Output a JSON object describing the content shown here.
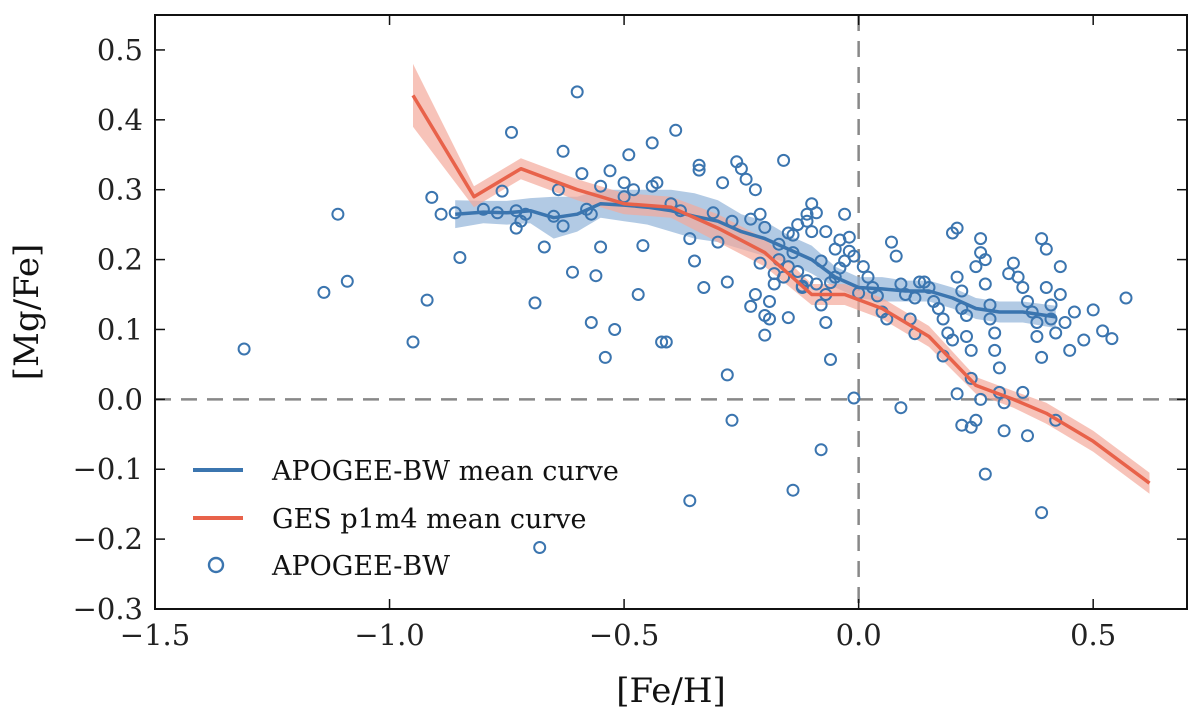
{
  "chart_data": {
    "type": "scatter",
    "title": "",
    "xlabel": "[Fe/H]",
    "ylabel": "[Mg/Fe]",
    "xlim": [
      -1.5,
      0.7
    ],
    "ylim": [
      -0.3,
      0.55
    ],
    "xticks": [
      -1.5,
      -1.0,
      -0.5,
      0.0,
      0.5
    ],
    "xtick_labels": [
      "−1.5",
      "−1.0",
      "−0.5",
      "0.0",
      "0.5"
    ],
    "yticks": [
      -0.3,
      -0.2,
      -0.1,
      0.0,
      0.1,
      0.2,
      0.3,
      0.4,
      0.5
    ],
    "ytick_labels": [
      "−0.3",
      "−0.2",
      "−0.1",
      "0.0",
      "0.1",
      "0.2",
      "0.3",
      "0.4",
      "0.5"
    ],
    "reference_lines": [
      {
        "orientation": "vertical",
        "value": 0.0,
        "style": "dashed",
        "color": "#888888"
      },
      {
        "orientation": "horizontal",
        "value": 0.0,
        "style": "dashed",
        "color": "#888888"
      }
    ],
    "legend": {
      "placement": "lower-left",
      "entries": [
        {
          "label": "APOGEE-BW mean curve",
          "kind": "line",
          "color": "#3b75af"
        },
        {
          "label": "GES p1m4 mean curve",
          "kind": "line",
          "color": "#e8624a"
        },
        {
          "label": "APOGEE-BW",
          "kind": "marker",
          "color": "#3b75af"
        }
      ]
    },
    "series": [
      {
        "name": "APOGEE-BW mean curve",
        "type": "line",
        "color": "#3b75af",
        "band_color": "#92b4d8",
        "x": [
          -0.86,
          -0.8,
          -0.75,
          -0.7,
          -0.65,
          -0.6,
          -0.55,
          -0.5,
          -0.45,
          -0.4,
          -0.35,
          -0.3,
          -0.25,
          -0.2,
          -0.15,
          -0.1,
          -0.05,
          0.0,
          0.05,
          0.1,
          0.15,
          0.2,
          0.25,
          0.3,
          0.35,
          0.42
        ],
        "y": [
          0.265,
          0.268,
          0.267,
          0.27,
          0.26,
          0.265,
          0.28,
          0.278,
          0.275,
          0.27,
          0.262,
          0.255,
          0.24,
          0.23,
          0.215,
          0.2,
          0.175,
          0.16,
          0.158,
          0.155,
          0.155,
          0.145,
          0.13,
          0.125,
          0.125,
          0.118
        ],
        "lower": [
          0.245,
          0.252,
          0.25,
          0.252,
          0.23,
          0.24,
          0.26,
          0.255,
          0.25,
          0.24,
          0.23,
          0.225,
          0.215,
          0.205,
          0.195,
          0.18,
          0.16,
          0.145,
          0.14,
          0.14,
          0.14,
          0.13,
          0.115,
          0.11,
          0.11,
          0.102
        ],
        "upper": [
          0.285,
          0.284,
          0.284,
          0.288,
          0.29,
          0.29,
          0.3,
          0.3,
          0.3,
          0.3,
          0.295,
          0.285,
          0.265,
          0.255,
          0.235,
          0.22,
          0.19,
          0.175,
          0.175,
          0.17,
          0.17,
          0.16,
          0.145,
          0.14,
          0.14,
          0.134
        ]
      },
      {
        "name": "GES p1m4 mean curve",
        "type": "line",
        "color": "#e8624a",
        "band_color": "#f4a99b",
        "x": [
          -0.95,
          -0.82,
          -0.72,
          -0.6,
          -0.5,
          -0.4,
          -0.3,
          -0.2,
          -0.1,
          -0.03,
          0.05,
          0.15,
          0.25,
          0.33,
          0.4,
          0.5,
          0.62
        ],
        "y": [
          0.435,
          0.29,
          0.33,
          0.3,
          0.28,
          0.275,
          0.245,
          0.21,
          0.15,
          0.15,
          0.13,
          0.09,
          0.02,
          0.0,
          -0.02,
          -0.06,
          -0.12
        ],
        "lower": [
          0.39,
          0.275,
          0.315,
          0.285,
          0.265,
          0.26,
          0.225,
          0.19,
          0.135,
          0.135,
          0.115,
          0.075,
          0.008,
          -0.012,
          -0.035,
          -0.075,
          -0.135
        ],
        "upper": [
          0.48,
          0.305,
          0.345,
          0.315,
          0.295,
          0.29,
          0.265,
          0.23,
          0.165,
          0.165,
          0.145,
          0.105,
          0.032,
          0.012,
          -0.005,
          -0.045,
          -0.105
        ]
      },
      {
        "name": "APOGEE-BW",
        "type": "scatter",
        "marker": "open-circle",
        "color": "#3b75af",
        "points": [
          [
            -1.31,
            0.072
          ],
          [
            -1.14,
            0.153
          ],
          [
            -1.11,
            0.265
          ],
          [
            -1.09,
            0.169
          ],
          [
            -0.95,
            0.082
          ],
          [
            -0.92,
            0.142
          ],
          [
            -0.91,
            0.289
          ],
          [
            -0.89,
            0.265
          ],
          [
            -0.86,
            0.267
          ],
          [
            -0.85,
            0.203
          ],
          [
            -0.8,
            0.272
          ],
          [
            -0.77,
            0.267
          ],
          [
            -0.76,
            0.298
          ],
          [
            -0.74,
            0.382
          ],
          [
            -0.73,
            0.245
          ],
          [
            -0.73,
            0.27
          ],
          [
            -0.72,
            0.255
          ],
          [
            -0.71,
            0.265
          ],
          [
            -0.69,
            0.138
          ],
          [
            -0.68,
            -0.212
          ],
          [
            -0.67,
            0.218
          ],
          [
            -0.65,
            0.262
          ],
          [
            -0.64,
            0.3
          ],
          [
            -0.63,
            0.355
          ],
          [
            -0.63,
            0.248
          ],
          [
            -0.61,
            0.182
          ],
          [
            -0.6,
            0.44
          ],
          [
            -0.59,
            0.323
          ],
          [
            -0.58,
            0.272
          ],
          [
            -0.57,
            0.265
          ],
          [
            -0.57,
            0.11
          ],
          [
            -0.56,
            0.177
          ],
          [
            -0.55,
            0.305
          ],
          [
            -0.55,
            0.218
          ],
          [
            -0.54,
            0.06
          ],
          [
            -0.53,
            0.327
          ],
          [
            -0.52,
            0.1
          ],
          [
            -0.5,
            0.31
          ],
          [
            -0.5,
            0.29
          ],
          [
            -0.49,
            0.35
          ],
          [
            -0.48,
            0.3
          ],
          [
            -0.47,
            0.15
          ],
          [
            -0.46,
            0.22
          ],
          [
            -0.44,
            0.367
          ],
          [
            -0.44,
            0.305
          ],
          [
            -0.43,
            0.31
          ],
          [
            -0.42,
            0.082
          ],
          [
            -0.41,
            0.082
          ],
          [
            -0.4,
            0.28
          ],
          [
            -0.39,
            0.385
          ],
          [
            -0.38,
            0.27
          ],
          [
            -0.36,
            0.23
          ],
          [
            -0.36,
            -0.145
          ],
          [
            -0.35,
            0.198
          ],
          [
            -0.34,
            0.335
          ],
          [
            -0.34,
            0.328
          ],
          [
            -0.33,
            0.16
          ],
          [
            -0.31,
            0.267
          ],
          [
            -0.3,
            0.225
          ],
          [
            -0.29,
            0.31
          ],
          [
            -0.28,
            0.168
          ],
          [
            -0.28,
            0.035
          ],
          [
            -0.27,
            0.255
          ],
          [
            -0.27,
            -0.03
          ],
          [
            -0.26,
            0.34
          ],
          [
            -0.25,
            0.33
          ],
          [
            -0.24,
            0.315
          ],
          [
            -0.23,
            0.258
          ],
          [
            -0.23,
            0.133
          ],
          [
            -0.22,
            0.3
          ],
          [
            -0.21,
            0.265
          ],
          [
            -0.2,
            0.246
          ],
          [
            -0.2,
            0.092
          ],
          [
            -0.19,
            0.115
          ],
          [
            -0.18,
            0.18
          ],
          [
            -0.17,
            0.222
          ],
          [
            -0.16,
            0.342
          ],
          [
            -0.15,
            0.238
          ],
          [
            -0.15,
            0.117
          ],
          [
            -0.14,
            0.21
          ],
          [
            -0.14,
            -0.13
          ],
          [
            -0.13,
            0.183
          ],
          [
            -0.12,
            0.16
          ],
          [
            -0.11,
            0.265
          ],
          [
            -0.11,
            0.255
          ],
          [
            -0.1,
            0.28
          ],
          [
            -0.09,
            0.267
          ],
          [
            -0.08,
            0.198
          ],
          [
            -0.08,
            -0.072
          ],
          [
            -0.07,
            0.24
          ],
          [
            -0.07,
            0.11
          ],
          [
            -0.06,
            0.057
          ],
          [
            -0.05,
            0.215
          ],
          [
            -0.04,
            0.228
          ],
          [
            -0.03,
            0.265
          ],
          [
            -0.02,
            0.232
          ],
          [
            -0.01,
            0.205
          ],
          [
            0.0,
            0.152
          ],
          [
            -0.01,
            0.002
          ],
          [
            -0.02,
            0.212
          ],
          [
            -0.03,
            0.198
          ],
          [
            -0.04,
            0.188
          ],
          [
            -0.05,
            0.175
          ],
          [
            -0.06,
            0.167
          ],
          [
            -0.07,
            0.15
          ],
          [
            -0.08,
            0.135
          ],
          [
            -0.09,
            0.165
          ],
          [
            -0.1,
            0.24
          ],
          [
            -0.11,
            0.17
          ],
          [
            -0.12,
            0.162
          ],
          [
            -0.13,
            0.25
          ],
          [
            -0.14,
            0.235
          ],
          [
            -0.15,
            0.19
          ],
          [
            -0.16,
            0.175
          ],
          [
            -0.17,
            0.2
          ],
          [
            -0.18,
            0.165
          ],
          [
            -0.19,
            0.14
          ],
          [
            -0.2,
            0.12
          ],
          [
            -0.21,
            0.195
          ],
          [
            -0.22,
            0.15
          ],
          [
            0.01,
            0.19
          ],
          [
            0.02,
            0.175
          ],
          [
            0.03,
            0.16
          ],
          [
            0.04,
            0.148
          ],
          [
            0.05,
            0.125
          ],
          [
            0.06,
            0.115
          ],
          [
            0.07,
            0.225
          ],
          [
            0.08,
            0.205
          ],
          [
            0.09,
            0.165
          ],
          [
            0.1,
            0.15
          ],
          [
            0.11,
            0.115
          ],
          [
            0.12,
            0.145
          ],
          [
            0.13,
            0.168
          ],
          [
            0.14,
            0.168
          ],
          [
            0.15,
            0.16
          ],
          [
            0.16,
            0.14
          ],
          [
            0.17,
            0.13
          ],
          [
            0.18,
            0.115
          ],
          [
            0.19,
            0.095
          ],
          [
            0.2,
            0.085
          ],
          [
            0.2,
            0.238
          ],
          [
            0.21,
            0.245
          ],
          [
            0.21,
            0.175
          ],
          [
            0.22,
            0.155
          ],
          [
            0.22,
            0.13
          ],
          [
            0.23,
            0.12
          ],
          [
            0.23,
            0.09
          ],
          [
            0.24,
            0.07
          ],
          [
            0.24,
            0.03
          ],
          [
            0.25,
            -0.03
          ],
          [
            0.25,
            0.19
          ],
          [
            0.26,
            0.21
          ],
          [
            0.26,
            0.23
          ],
          [
            0.27,
            0.2
          ],
          [
            0.27,
            0.165
          ],
          [
            0.28,
            0.135
          ],
          [
            0.28,
            0.115
          ],
          [
            0.29,
            0.095
          ],
          [
            0.29,
            0.07
          ],
          [
            0.3,
            0.045
          ],
          [
            0.3,
            0.01
          ],
          [
            0.31,
            -0.005
          ],
          [
            0.31,
            -0.045
          ],
          [
            0.32,
            0.18
          ],
          [
            0.33,
            0.195
          ],
          [
            0.34,
            0.175
          ],
          [
            0.35,
            0.16
          ],
          [
            0.36,
            0.14
          ],
          [
            0.37,
            0.125
          ],
          [
            0.38,
            0.11
          ],
          [
            0.38,
            0.09
          ],
          [
            0.39,
            0.06
          ],
          [
            0.39,
            0.23
          ],
          [
            0.4,
            0.215
          ],
          [
            0.4,
            0.16
          ],
          [
            0.41,
            0.135
          ],
          [
            0.41,
            0.115
          ],
          [
            0.42,
            0.095
          ],
          [
            0.42,
            -0.03
          ],
          [
            0.43,
            0.19
          ],
          [
            0.43,
            0.15
          ],
          [
            0.44,
            0.11
          ],
          [
            0.45,
            0.07
          ],
          [
            0.46,
            0.125
          ],
          [
            0.48,
            0.085
          ],
          [
            0.5,
            0.128
          ],
          [
            0.52,
            0.098
          ],
          [
            0.54,
            0.087
          ],
          [
            0.57,
            0.145
          ],
          [
            0.39,
            -0.162
          ],
          [
            0.27,
            -0.107
          ],
          [
            0.36,
            -0.052
          ],
          [
            0.35,
            0.01
          ],
          [
            0.26,
            0.0
          ],
          [
            0.24,
            -0.04
          ],
          [
            0.22,
            -0.037
          ],
          [
            0.21,
            0.008
          ],
          [
            0.18,
            0.062
          ],
          [
            0.12,
            0.094
          ],
          [
            0.09,
            -0.012
          ]
        ]
      }
    ]
  }
}
